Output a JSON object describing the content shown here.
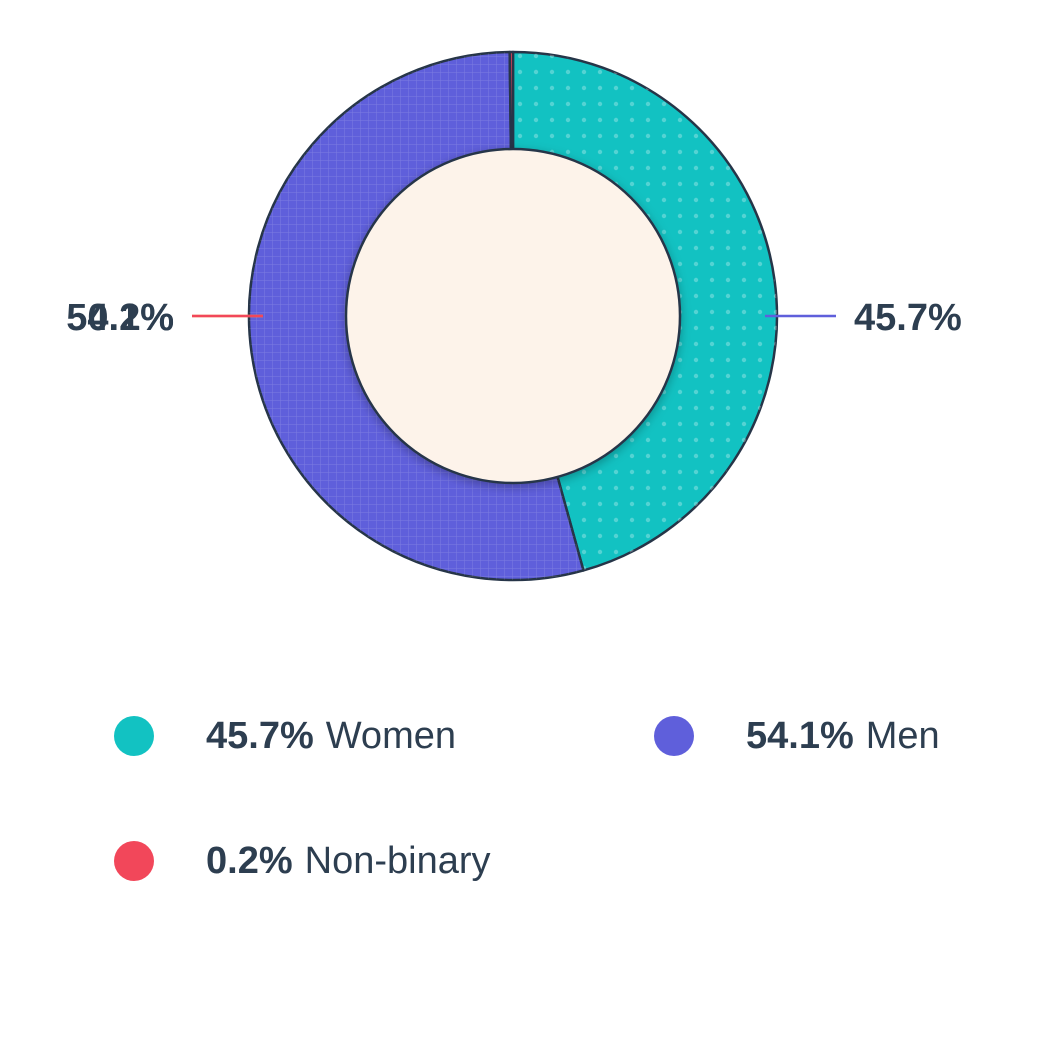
{
  "chart_data": {
    "type": "pie",
    "variant": "donut",
    "categories": [
      "Women",
      "Men",
      "Non-binary"
    ],
    "values": [
      45.7,
      54.1,
      0.2
    ],
    "value_labels": [
      "45.7%",
      "54.1%",
      "0.2%"
    ],
    "colors": [
      "#12c2c2",
      "#5f5fdb",
      "#f2475a"
    ],
    "leader_colors": [
      "#5f5fdb",
      "#f5b94a",
      "#f2475a"
    ],
    "inner_fill": "#fdf3ea",
    "outline": "#263548",
    "legend_position": "bottom"
  },
  "legend": {
    "items": [
      {
        "value": "45.7%",
        "label": "Women",
        "color": "#12c2c2"
      },
      {
        "value": "54.1%",
        "label": "Men",
        "color": "#5f5fdb"
      },
      {
        "value": "0.2%",
        "label": "Non-binary",
        "color": "#f2475a"
      }
    ]
  }
}
